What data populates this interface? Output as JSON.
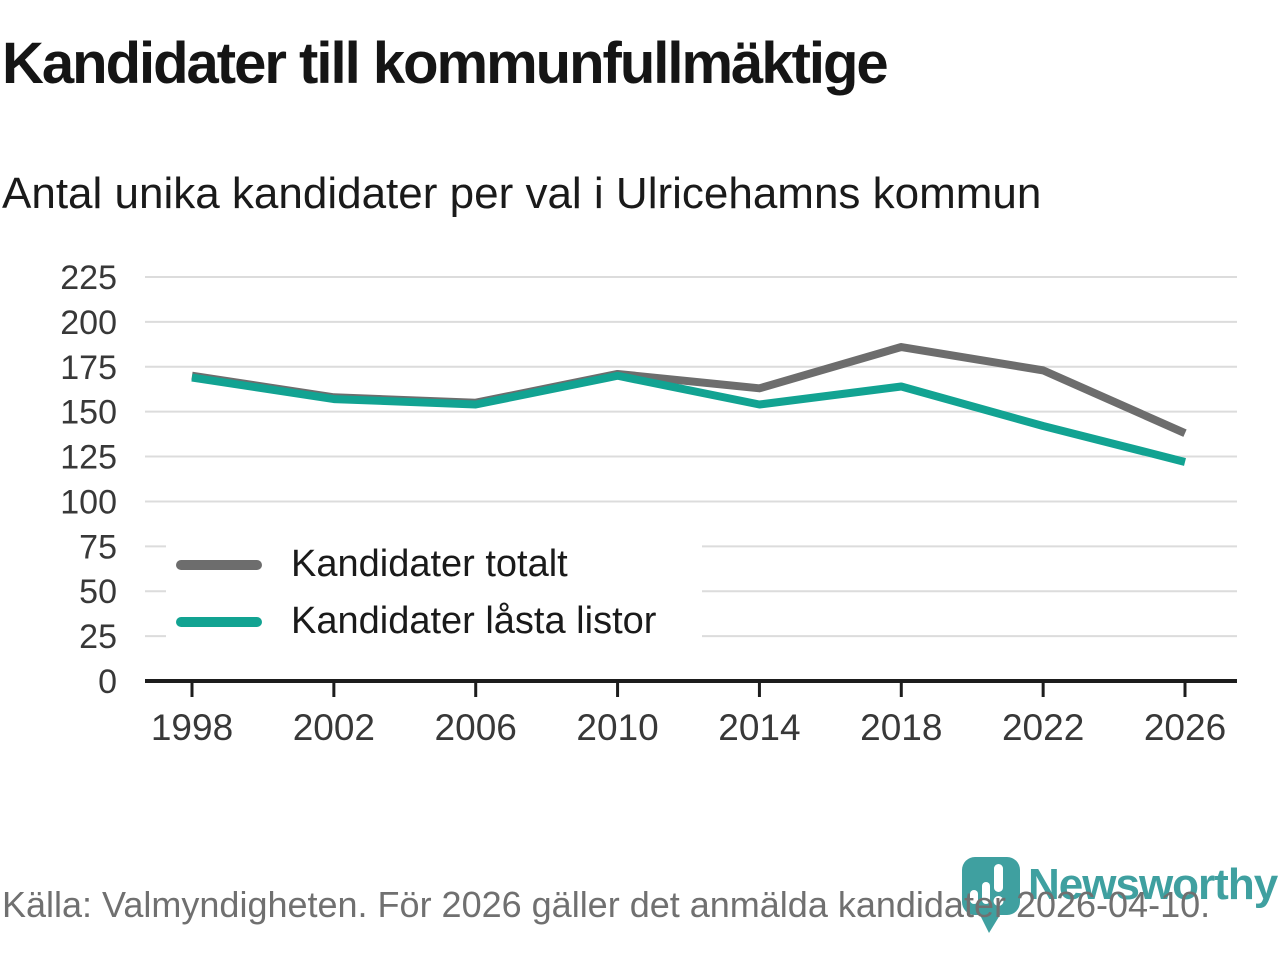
{
  "chart_data": {
    "type": "line",
    "title": "Kandidater till kommunfullmäktige",
    "subtitle": "Antal unika kandidater per val i Ulricehamns kommun",
    "x": [
      1998,
      2002,
      2006,
      2010,
      2014,
      2018,
      2022,
      2026
    ],
    "series": [
      {
        "name": "Kandidater totalt",
        "color": "#6d6d6d",
        "values": [
          170,
          158,
          155,
          171,
          163,
          186,
          173,
          138
        ]
      },
      {
        "name": "Kandidater låsta listor",
        "color": "#12a392",
        "values": [
          169,
          157,
          154,
          170,
          154,
          164,
          142,
          122
        ]
      }
    ],
    "ylim": [
      0,
      225
    ],
    "yticks": [
      0,
      25,
      50,
      75,
      100,
      125,
      150,
      175,
      200,
      225
    ],
    "grid": "horizontal-gridlines",
    "legend_position": "inside-lower-left"
  },
  "footer": {
    "source": "Källa: Valmyndigheten. För 2026 gäller det anmälda kandidater 2026-04-10.",
    "brand": "Newsworthy",
    "brand_color": "#3fa0a0"
  }
}
